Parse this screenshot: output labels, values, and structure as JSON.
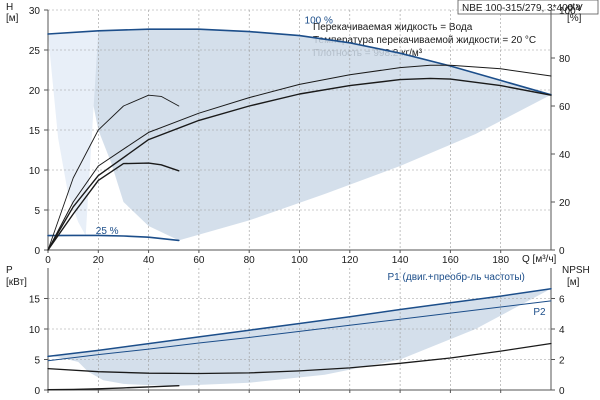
{
  "header": {
    "model": "NBE 100-315/279, 3*400 V",
    "notes": [
      "Перекачиваемая жидкость = Вода",
      "Температура перекачиваемой жидкости = 20 °C",
      "Плотность = 998.2 кг/м³"
    ]
  },
  "chart_data": [
    {
      "type": "line",
      "title": "",
      "xlabel": "Q [м³/ч]",
      "ylabel": "H [м]",
      "y2label": "eta [%]",
      "xlim": [
        0,
        200
      ],
      "ylim": [
        0,
        30
      ],
      "y2lim": [
        0,
        100
      ],
      "x_ticks": [
        "0",
        "20",
        "40",
        "60",
        "80",
        "100",
        "120",
        "140",
        "160",
        "180"
      ],
      "y_ticks": [
        "0",
        "5",
        "10",
        "15",
        "20",
        "25",
        "30"
      ],
      "y2_ticks": [
        "0",
        "20",
        "40",
        "60",
        "80",
        "100"
      ],
      "grid": true,
      "series": [
        {
          "name": "100 %",
          "color": "#1c4e8a",
          "width": 1.6,
          "x": [
            0,
            20,
            40,
            60,
            80,
            100,
            120,
            140,
            160,
            180,
            200
          ],
          "y": [
            27.0,
            27.4,
            27.6,
            27.6,
            27.3,
            26.8,
            25.9,
            24.6,
            23.0,
            21.2,
            19.4
          ]
        },
        {
          "name": "25 %",
          "color": "#1c4e8a",
          "width": 1.6,
          "x": [
            0,
            10,
            20,
            30,
            40,
            52
          ],
          "y": [
            1.8,
            1.82,
            1.82,
            1.75,
            1.6,
            1.2
          ]
        },
        {
          "axis": "y2",
          "color": "#1a1a1a",
          "width": 1.4,
          "x": [
            0,
            10,
            20,
            40,
            60,
            80,
            100,
            120,
            140,
            152,
            160,
            180,
            200
          ],
          "y": [
            0,
            18,
            31,
            46,
            54,
            60,
            65,
            68.5,
            71,
            71.5,
            71.2,
            68.5,
            64.5
          ]
        },
        {
          "axis": "y2",
          "color": "#1a1a1a",
          "width": 1.0,
          "x": [
            0,
            10,
            20,
            40,
            60,
            80,
            100,
            120,
            140,
            152,
            160,
            180,
            200
          ],
          "y": [
            0,
            20,
            35,
            49,
            57,
            63.5,
            69,
            73,
            76,
            77,
            77,
            75.5,
            72.5
          ]
        },
        {
          "axis": "y2",
          "color": "#1a1a1a",
          "width": 1.4,
          "x": [
            0,
            10,
            20,
            30,
            40,
            45,
            52
          ],
          "y": [
            0,
            15,
            29,
            36,
            36.2,
            35.5,
            33
          ]
        },
        {
          "axis": "y2",
          "color": "#1a1a1a",
          "width": 0.9,
          "x": [
            0,
            10,
            20,
            30,
            40,
            45,
            52
          ],
          "y": [
            0,
            30,
            50,
            60,
            64.5,
            64,
            60
          ]
        }
      ],
      "bands": [
        {
          "color": "#cdd9e7",
          "opacity": 0.85,
          "upper": {
            "x": [
              2,
              20,
              40,
              60,
              80,
              100,
              120,
              140,
              160,
              180,
              200
            ],
            "y": [
              27.0,
              27.4,
              27.6,
              27.6,
              27.3,
              26.8,
              25.9,
              24.6,
              23.0,
              21.2,
              19.4
            ]
          },
          "lower": {
            "x": [
              52,
              80,
              110,
              140,
              170,
              200
            ],
            "y": [
              1.2,
              3.7,
              7.0,
              10.5,
              14.5,
              19.4
            ]
          },
          "left": {
            "x": [
              2,
              10,
              15,
              20,
              25,
              30,
              40,
              52
            ],
            "y": [
              27.0,
              24.0,
              23.0,
              15.0,
              11.0,
              6.0,
              3.0,
              1.2
            ]
          }
        },
        {
          "color": "#e8eff8",
          "opacity": 1,
          "upper": {
            "x": [
              0,
              2,
              20
            ],
            "y": [
              27.0,
              27.0,
              27.4
            ]
          },
          "lower": {
            "x": [
              0,
              4,
              8,
              12,
              15
            ],
            "y": [
              27.0,
              14.0,
              7.0,
              3.5,
              1.8
            ]
          }
        }
      ],
      "labels": [
        {
          "text": "100 %",
          "x": 102,
          "y": 28.3,
          "color": "#1c4e8a"
        },
        {
          "text": "25 %",
          "x": 19,
          "y": 2.0,
          "color": "#1c4e8a"
        }
      ]
    },
    {
      "type": "line",
      "title": "",
      "xlabel": "",
      "ylabel": "P [кВт]",
      "y2label": "NPSH [м]",
      "xlim": [
        0,
        200
      ],
      "ylim": [
        0,
        20
      ],
      "y2lim": [
        0,
        8
      ],
      "y_ticks": [
        "0",
        "5",
        "10",
        "15"
      ],
      "y2_ticks": [
        "0",
        "2",
        "4",
        "6"
      ],
      "grid": true,
      "series": [
        {
          "name": "P1 (двиг.+преобр-ль частоты)",
          "color": "#1c4e8a",
          "width": 1.5,
          "x": [
            0,
            20,
            40,
            60,
            80,
            100,
            120,
            140,
            160,
            180,
            200
          ],
          "y": [
            5.5,
            6.5,
            7.6,
            8.7,
            9.8,
            10.9,
            12.0,
            13.2,
            14.3,
            15.4,
            16.6
          ]
        },
        {
          "name": "P2",
          "color": "#1c4e8a",
          "width": 1.0,
          "x": [
            0,
            20,
            40,
            60,
            80,
            100,
            120,
            140,
            160,
            180,
            200
          ],
          "y": [
            4.8,
            5.8,
            6.7,
            7.7,
            8.6,
            9.6,
            10.6,
            11.6,
            12.6,
            13.6,
            14.6
          ]
        },
        {
          "axis": "y2",
          "color": "#1a1a1a",
          "width": 1.3,
          "x": [
            0,
            20,
            40,
            60,
            80,
            100,
            120,
            140,
            160,
            180,
            200
          ],
          "y": [
            1.4,
            1.2,
            1.1,
            1.08,
            1.12,
            1.25,
            1.45,
            1.75,
            2.1,
            2.55,
            3.05
          ]
        },
        {
          "color": "#1a1a1a",
          "width": 1.4,
          "x": [
            0,
            10,
            20,
            30,
            40,
            52
          ],
          "y": [
            0.05,
            0.1,
            0.2,
            0.35,
            0.5,
            0.7
          ]
        }
      ],
      "bands": [
        {
          "color": "#cdd9e7",
          "opacity": 0.85,
          "upper": {
            "x": [
              2,
              20,
              40,
              60,
              80,
              100,
              120,
              140,
              160,
              180,
              200
            ],
            "y": [
              5.5,
              6.5,
              7.6,
              8.7,
              9.8,
              10.9,
              12.0,
              13.2,
              14.3,
              15.4,
              16.6
            ]
          },
          "lower": {
            "x": [
              52,
              80,
              110,
              140,
              170,
              200
            ],
            "y": [
              0.7,
              1.2,
              2.5,
              5.0,
              10.0,
              16.6
            ]
          },
          "left": {
            "x": [
              2,
              8,
              12,
              16,
              22,
              30,
              40,
              52
            ],
            "y": [
              5.5,
              5.0,
              4.6,
              3.0,
              1.6,
              1.0,
              0.8,
              0.7
            ]
          }
        }
      ],
      "labels": [
        {
          "text": "P1 (двиг.+преобр-ль частоты)",
          "x": 135,
          "y": 18.0,
          "color": "#1c4e8a"
        },
        {
          "text": "P2",
          "x": 193,
          "y": 12.3,
          "color": "#1c4e8a"
        }
      ]
    }
  ]
}
